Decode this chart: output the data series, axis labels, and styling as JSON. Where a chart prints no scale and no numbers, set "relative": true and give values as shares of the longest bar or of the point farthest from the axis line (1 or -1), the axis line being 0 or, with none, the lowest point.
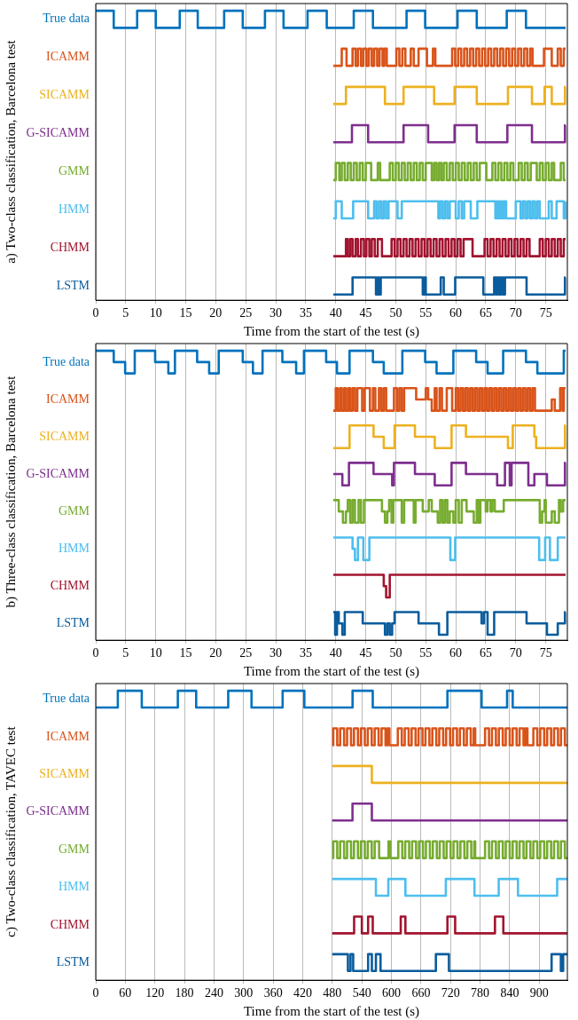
{
  "chart_data": [
    {
      "type": "step",
      "relative": true,
      "ylabel": "a) Two-class classification, Barcelona test",
      "xlabel": "Time from the start of the test (s)",
      "xlim": [
        0,
        78.6
      ],
      "xticks": [
        0,
        5,
        10,
        15,
        20,
        25,
        30,
        35,
        40,
        45,
        50,
        55,
        60,
        65,
        70,
        75
      ],
      "grid": "x",
      "series": [
        {
          "name": "True data",
          "color": "#0072bd",
          "x": [
            0,
            3.0,
            6.9,
            10.0,
            14.0,
            17.0,
            21.4,
            24.5,
            28.2,
            31.3,
            35.3,
            38.5,
            43.0,
            46.2,
            51.8,
            54.9,
            60.3,
            63.5,
            68.5,
            71.7,
            78.3
          ],
          "values": [
            1,
            0.941,
            1,
            0.941,
            1,
            0.941,
            1,
            0.941,
            1,
            0.941,
            1,
            0.941,
            1,
            0.941,
            1,
            0.941,
            1,
            0.941,
            1,
            0.941,
            0.941
          ]
        },
        {
          "name": "ICAMM",
          "color": "#d95319",
          "x": [
            39.6,
            41.0,
            41.8,
            42.8,
            43.3,
            43.7,
            44.2,
            44.6,
            45.1,
            45.5,
            46.0,
            46.4,
            46.9,
            47.3,
            47.8,
            48.1,
            48.5,
            50.1,
            50.6,
            51.1,
            51.6,
            52.5,
            53.0,
            53.8,
            55.2,
            56.2,
            56.6,
            59.4,
            59.9,
            60.4,
            60.9,
            61.4,
            61.9,
            62.4,
            62.9,
            63.4,
            63.9,
            64.4,
            64.9,
            65.4,
            65.9,
            66.4,
            66.9,
            67.4,
            67.9,
            68.4,
            68.9,
            69.4,
            69.9,
            70.4,
            70.9,
            71.4,
            71.9,
            72.4,
            72.8,
            74.7,
            76.0,
            77.0,
            77.5,
            78.0,
            78.3
          ],
          "values": [
            0.81,
            0.869,
            0.81,
            0.869,
            0.81,
            0.869,
            0.81,
            0.869,
            0.81,
            0.869,
            0.81,
            0.869,
            0.81,
            0.869,
            0.81,
            0.869,
            0.81,
            0.869,
            0.81,
            0.869,
            0.81,
            0.869,
            0.81,
            0.869,
            0.81,
            0.869,
            0.81,
            0.869,
            0.81,
            0.869,
            0.81,
            0.869,
            0.81,
            0.869,
            0.81,
            0.869,
            0.81,
            0.869,
            0.81,
            0.869,
            0.81,
            0.869,
            0.81,
            0.869,
            0.81,
            0.869,
            0.81,
            0.869,
            0.81,
            0.869,
            0.81,
            0.869,
            0.81,
            0.869,
            0.81,
            0.869,
            0.81,
            0.869,
            0.81,
            0.869,
            0.869
          ]
        },
        {
          "name": "SICAMM",
          "color": "#edb120",
          "x": [
            39.6,
            41.7,
            48.2,
            51.3,
            56.4,
            59.8,
            63.5,
            68.7,
            72.7,
            74.8,
            76.0,
            78.2,
            78.3
          ],
          "values": [
            0.678,
            0.737,
            0.678,
            0.737,
            0.678,
            0.737,
            0.678,
            0.737,
            0.678,
            0.737,
            0.678,
            0.737,
            0.737
          ]
        },
        {
          "name": "G-SICAMM",
          "color": "#7e2f8e",
          "x": [
            39.6,
            42.7,
            45.4,
            51.3,
            55.4,
            59.8,
            63.5,
            68.6,
            72.7,
            78.2,
            78.3
          ],
          "values": [
            0.546,
            0.605,
            0.546,
            0.605,
            0.546,
            0.605,
            0.546,
            0.605,
            0.546,
            0.605,
            0.605
          ]
        },
        {
          "name": "GMM",
          "color": "#77ac30",
          "x": [
            39.6,
            40.0,
            40.6,
            41.0,
            41.5,
            42.0,
            42.5,
            43.0,
            43.5,
            44.0,
            44.5,
            45.0,
            45.9,
            47.0,
            47.4,
            49.0,
            49.5,
            50.0,
            50.5,
            51.0,
            51.5,
            52.0,
            52.5,
            53.0,
            53.5,
            54.0,
            54.5,
            55.0,
            56.0,
            56.4,
            56.8,
            57.2,
            57.6,
            58.0,
            58.5,
            59.0,
            59.5,
            60.0,
            60.5,
            61.0,
            61.5,
            62.0,
            62.5,
            63.0,
            63.5,
            64.0,
            65.1,
            66.1,
            66.6,
            67.1,
            67.6,
            68.1,
            68.6,
            69.1,
            69.6,
            70.5,
            71.0,
            71.5,
            72.0,
            72.5,
            73.5,
            74.0,
            74.5,
            75.0,
            75.5,
            76.0,
            76.4,
            77.5,
            78.0,
            78.3
          ],
          "values": [
            0.415,
            0.474,
            0.415,
            0.474,
            0.415,
            0.474,
            0.415,
            0.474,
            0.415,
            0.474,
            0.415,
            0.474,
            0.415,
            0.474,
            0.415,
            0.474,
            0.415,
            0.474,
            0.415,
            0.474,
            0.415,
            0.474,
            0.415,
            0.474,
            0.415,
            0.474,
            0.415,
            0.474,
            0.415,
            0.474,
            0.415,
            0.474,
            0.415,
            0.474,
            0.415,
            0.474,
            0.415,
            0.474,
            0.415,
            0.474,
            0.415,
            0.474,
            0.415,
            0.474,
            0.415,
            0.474,
            0.415,
            0.474,
            0.415,
            0.474,
            0.415,
            0.474,
            0.415,
            0.474,
            0.415,
            0.474,
            0.415,
            0.474,
            0.415,
            0.474,
            0.415,
            0.474,
            0.415,
            0.474,
            0.415,
            0.474,
            0.415,
            0.474,
            0.415,
            0.415
          ]
        },
        {
          "name": "HMM",
          "color": "#4dbeee",
          "x": [
            39.6,
            40.0,
            41.0,
            42.9,
            45.4,
            46.4,
            46.8,
            47.2,
            47.6,
            48.0,
            48.4,
            48.8,
            50.3,
            51.0,
            57.1,
            57.4,
            57.8,
            58.2,
            58.6,
            59.0,
            60.0,
            60.5,
            61.0,
            61.4,
            62.5,
            63.6,
            66.6,
            66.9,
            67.2,
            67.5,
            67.8,
            68.1,
            68.4,
            70.0,
            70.8,
            71.2,
            71.6,
            72.0,
            72.4,
            72.8,
            73.2,
            73.6,
            74.0,
            75.5,
            76.0,
            76.8,
            78.0,
            78.3
          ],
          "values": [
            0.283,
            0.342,
            0.283,
            0.342,
            0.283,
            0.342,
            0.283,
            0.342,
            0.283,
            0.342,
            0.283,
            0.342,
            0.283,
            0.342,
            0.283,
            0.342,
            0.283,
            0.342,
            0.283,
            0.342,
            0.283,
            0.342,
            0.283,
            0.342,
            0.283,
            0.342,
            0.283,
            0.342,
            0.283,
            0.342,
            0.283,
            0.342,
            0.283,
            0.342,
            0.283,
            0.342,
            0.283,
            0.342,
            0.283,
            0.342,
            0.283,
            0.342,
            0.283,
            0.342,
            0.283,
            0.342,
            0.283,
            0.342
          ]
        },
        {
          "name": "CHMM",
          "color": "#a2142f",
          "x": [
            39.6,
            41.7,
            42.0,
            42.4,
            42.8,
            43.3,
            43.7,
            44.2,
            44.7,
            45.1,
            45.6,
            46.0,
            46.5,
            47.0,
            47.7,
            49.3,
            49.8,
            50.3,
            50.8,
            51.3,
            51.8,
            52.3,
            52.8,
            53.3,
            53.8,
            54.3,
            54.8,
            55.3,
            55.8,
            56.3,
            56.8,
            57.3,
            57.8,
            58.3,
            58.8,
            59.3,
            59.8,
            60.3,
            60.8,
            61.3,
            62.8,
            64.8,
            65.3,
            65.8,
            66.3,
            66.8,
            67.3,
            67.8,
            68.3,
            68.8,
            69.3,
            69.8,
            70.3,
            70.8,
            71.3,
            71.8,
            72.3,
            74.0,
            74.5,
            75.0,
            75.5,
            76.0,
            76.5,
            77.0,
            77.5,
            78.0,
            78.3
          ],
          "values": [
            0.152,
            0.211,
            0.152,
            0.211,
            0.152,
            0.211,
            0.152,
            0.211,
            0.152,
            0.211,
            0.152,
            0.211,
            0.152,
            0.211,
            0.152,
            0.211,
            0.152,
            0.211,
            0.152,
            0.211,
            0.152,
            0.211,
            0.152,
            0.211,
            0.152,
            0.211,
            0.152,
            0.211,
            0.152,
            0.211,
            0.152,
            0.211,
            0.152,
            0.211,
            0.152,
            0.211,
            0.152,
            0.211,
            0.152,
            0.211,
            0.152,
            0.211,
            0.152,
            0.211,
            0.152,
            0.211,
            0.152,
            0.211,
            0.152,
            0.211,
            0.152,
            0.211,
            0.152,
            0.211,
            0.152,
            0.211,
            0.152,
            0.211,
            0.152,
            0.211,
            0.152,
            0.211,
            0.152,
            0.211,
            0.152,
            0.211,
            0.211
          ]
        },
        {
          "name": "LSTM",
          "color": "#0a5c9c",
          "x": [
            39.6,
            42.8,
            46.7,
            47.0,
            47.2,
            47.5,
            54.5,
            54.8,
            55.0,
            57.5,
            58.0,
            59.9,
            64.6,
            66.4,
            66.7,
            67.0,
            67.3,
            67.6,
            67.9,
            68.2,
            71.8,
            78.2,
            78.3
          ],
          "values": [
            0.02,
            0.079,
            0.02,
            0.079,
            0.02,
            0.079,
            0.02,
            0.079,
            0.02,
            0.079,
            0.02,
            0.079,
            0.02,
            0.079,
            0.02,
            0.079,
            0.02,
            0.079,
            0.02,
            0.079,
            0.02,
            0.079,
            0.079
          ]
        }
      ]
    },
    {
      "type": "step",
      "relative": true,
      "ylabel": "b) Three-class classification, Barcelona test",
      "xlabel": "Time from the start of the test (s)",
      "xlim": [
        0,
        78.6
      ],
      "xticks": [
        0,
        5,
        10,
        15,
        20,
        25,
        30,
        35,
        40,
        45,
        50,
        55,
        60,
        65,
        70,
        75
      ],
      "grid": "x",
      "series": [
        {
          "name": "True data",
          "color": "#0072bd",
          "x": [
            0,
            3.0,
            4.9,
            6.5,
            9.9,
            12.1,
            13.2,
            16.9,
            18.9,
            20.5,
            24.5,
            26.2,
            27.8,
            31.1,
            33.4,
            34.7,
            38.4,
            40.2,
            42.3,
            46.2,
            48.0,
            51.1,
            54.9,
            56.8,
            59.6,
            63.4,
            65.3,
            67.9,
            71.7,
            73.6,
            78.0,
            78.3
          ],
          "values": [
            1,
            0.961,
            0.922,
            1,
            0.961,
            0.922,
            1,
            0.961,
            0.922,
            1,
            0.961,
            0.922,
            1,
            0.961,
            0.922,
            1,
            0.961,
            0.922,
            1,
            0.961,
            0.922,
            1,
            0.961,
            0.922,
            1,
            0.961,
            0.922,
            1,
            0.961,
            0.922,
            1,
            1
          ]
        },
        {
          "name": "ICAMM",
          "color": "#d95319",
          "x": [
            39.6,
            40.0,
            40.3,
            40.7,
            41.0,
            41.4,
            41.7,
            42.1,
            42.4,
            42.8,
            43.2,
            43.6,
            44.4,
            44.8,
            45.7,
            46.2,
            46.6,
            47.2,
            47.6,
            48.0,
            48.4,
            49.7,
            50.2,
            50.6,
            51.0,
            51.4,
            53.4,
            55.0,
            55.4,
            56.0,
            56.5,
            56.8,
            57.3,
            57.7,
            58.5,
            59.4,
            60.0,
            60.4,
            60.8,
            61.2,
            61.6,
            62.0,
            62.4,
            62.8,
            63.2,
            63.6,
            64.0,
            64.4,
            64.8,
            65.2,
            65.6,
            66.0,
            66.4,
            66.8,
            67.2,
            67.6,
            68.0,
            68.4,
            68.8,
            69.2,
            69.6,
            70.0,
            70.4,
            70.8,
            71.2,
            71.6,
            72.0,
            72.4,
            72.8,
            73.2,
            76.0,
            76.5,
            77.4,
            77.8,
            78.0,
            78.3
          ],
          "values": [
            0.793,
            0.871,
            0.793,
            0.871,
            0.793,
            0.871,
            0.793,
            0.871,
            0.793,
            0.871,
            0.793,
            0.871,
            0.793,
            0.871,
            0.793,
            0.871,
            0.793,
            0.871,
            0.793,
            0.871,
            0.793,
            0.871,
            0.793,
            0.871,
            0.793,
            0.871,
            0.832,
            0.871,
            0.832,
            0.793,
            0.871,
            0.793,
            0.871,
            0.793,
            0.871,
            0.793,
            0.871,
            0.793,
            0.871,
            0.793,
            0.871,
            0.793,
            0.871,
            0.793,
            0.871,
            0.793,
            0.871,
            0.793,
            0.871,
            0.793,
            0.871,
            0.793,
            0.871,
            0.793,
            0.871,
            0.793,
            0.871,
            0.793,
            0.871,
            0.793,
            0.871,
            0.793,
            0.871,
            0.793,
            0.871,
            0.793,
            0.871,
            0.793,
            0.871,
            0.793,
            0.832,
            0.793,
            0.871,
            0.793,
            0.871,
            0.871
          ]
        },
        {
          "name": "SICAMM",
          "color": "#edb120",
          "x": [
            39.6,
            42.3,
            46.3,
            48.0,
            49.8,
            53.2,
            56.5,
            59.3,
            61.7,
            68.7,
            69.5,
            73.1,
            73.4,
            78.2,
            78.3
          ],
          "values": [
            0.664,
            0.742,
            0.703,
            0.664,
            0.742,
            0.703,
            0.664,
            0.742,
            0.703,
            0.664,
            0.742,
            0.703,
            0.664,
            0.742,
            0.742
          ]
        },
        {
          "name": "G-SICAMM",
          "color": "#7e2f8e",
          "x": [
            39.6,
            41.1,
            42.2,
            46.3,
            49.4,
            49.7,
            53.2,
            56.5,
            59.3,
            61.7,
            66.9,
            68.2,
            69.0,
            69.3,
            72.1,
            73.1,
            75.2,
            78.2,
            78.3
          ],
          "values": [
            0.574,
            0.535,
            0.613,
            0.574,
            0.535,
            0.613,
            0.574,
            0.535,
            0.613,
            0.574,
            0.535,
            0.613,
            0.535,
            0.613,
            0.535,
            0.574,
            0.535,
            0.613,
            0.613
          ]
        },
        {
          "name": "GMM",
          "color": "#77ac30",
          "x": [
            39.6,
            40.5,
            41.2,
            41.7,
            42.0,
            42.4,
            42.8,
            43.2,
            43.8,
            44.2,
            44.7,
            47.7,
            48.2,
            48.6,
            48.9,
            49.3,
            49.6,
            51.0,
            51.4,
            53.0,
            53.3,
            54.5,
            55.5,
            56.0,
            57.0,
            57.4,
            57.8,
            58.2,
            58.6,
            59.0,
            59.6,
            60.0,
            60.5,
            61.0,
            61.8,
            63.0,
            63.5,
            63.8,
            64.1,
            65.0,
            65.3,
            65.8,
            66.1,
            66.5,
            68.0,
            74.0,
            74.4,
            74.8,
            75.0,
            76.0,
            76.5,
            77.2,
            77.5,
            77.9,
            78.3
          ],
          "values": [
            0.484,
            0.445,
            0.406,
            0.445,
            0.484,
            0.406,
            0.484,
            0.406,
            0.484,
            0.406,
            0.484,
            0.445,
            0.406,
            0.445,
            0.484,
            0.406,
            0.484,
            0.406,
            0.484,
            0.406,
            0.484,
            0.445,
            0.484,
            0.445,
            0.406,
            0.484,
            0.406,
            0.484,
            0.406,
            0.445,
            0.406,
            0.484,
            0.406,
            0.484,
            0.445,
            0.406,
            0.484,
            0.406,
            0.484,
            0.445,
            0.484,
            0.445,
            0.484,
            0.445,
            0.484,
            0.406,
            0.445,
            0.484,
            0.406,
            0.445,
            0.406,
            0.484,
            0.445,
            0.484,
            0.484
          ]
        },
        {
          "name": "HMM",
          "color": "#4dbeee",
          "x": [
            39.6,
            42.8,
            43.2,
            43.7,
            44.6,
            45.6,
            59.1,
            59.9,
            73.9,
            74.9,
            75.7,
            77.0,
            78.3
          ],
          "values": [
            0.355,
            0.316,
            0.277,
            0.355,
            0.277,
            0.355,
            0.277,
            0.355,
            0.277,
            0.355,
            0.277,
            0.355,
            0.355
          ]
        },
        {
          "name": "CHMM",
          "color": "#a2142f",
          "x": [
            39.6,
            48.0,
            48.4,
            49.0,
            78.3
          ],
          "values": [
            0.226,
            0.187,
            0.148,
            0.226,
            0.226
          ]
        },
        {
          "name": "LSTM",
          "color": "#0a5c9c",
          "x": [
            39.6,
            39.9,
            40.2,
            40.5,
            41.1,
            41.5,
            44.5,
            48.2,
            48.6,
            49.0,
            49.4,
            49.8,
            53.8,
            57.2,
            58.6,
            64.3,
            64.7,
            65.3,
            66.4,
            71.8,
            75.2,
            77.0,
            78.2,
            78.3
          ],
          "values": [
            0.097,
            0.019,
            0.097,
            0.058,
            0.019,
            0.097,
            0.058,
            0.019,
            0.058,
            0.019,
            0.058,
            0.097,
            0.058,
            0.019,
            0.097,
            0.058,
            0.097,
            0.019,
            0.097,
            0.058,
            0.019,
            0.058,
            0.097,
            0.097
          ]
        }
      ]
    },
    {
      "type": "step",
      "relative": true,
      "ylabel": "c) Two-class classification, TAVEC test",
      "xlabel": "Time from the start of the test (s)",
      "xlim": [
        0,
        957
      ],
      "xticks": [
        0,
        60,
        120,
        180,
        240,
        300,
        360,
        420,
        480,
        540,
        600,
        660,
        720,
        780,
        840,
        900
      ],
      "grid": "x",
      "series": [
        {
          "name": "True data",
          "color": "#0072bd",
          "x": [
            0,
            44.8,
            93.4,
            166.6,
            203.8,
            268.8,
            316.1,
            379.2,
            423.3,
            521.1,
            562.1,
            713.6,
            783.0,
            834.7,
            846.1,
            957
          ],
          "values": [
            0.942,
            1,
            0.942,
            1,
            0.942,
            1,
            0.942,
            1,
            0.942,
            1,
            0.942,
            1,
            0.942,
            1,
            0.942,
            0.942
          ]
        },
        {
          "name": "ICAMM",
          "color": "#d95319",
          "x": [
            480,
            482,
            490,
            496,
            504,
            510,
            518,
            524,
            532,
            538,
            546,
            552,
            560,
            566,
            574,
            580,
            588,
            592,
            596,
            613,
            621,
            627,
            635,
            641,
            649,
            655,
            663,
            669,
            677,
            683,
            691,
            697,
            705,
            711,
            719,
            725,
            733,
            739,
            747,
            753,
            761,
            767,
            770,
            790,
            798,
            804,
            812,
            818,
            826,
            832,
            840,
            846,
            854,
            860,
            868,
            872,
            876,
            888,
            896,
            902,
            910,
            916,
            924,
            930,
            938,
            944,
            952,
            957
          ],
          "values": [
            0.812,
            0.87,
            0.812,
            0.87,
            0.812,
            0.87,
            0.812,
            0.87,
            0.812,
            0.87,
            0.812,
            0.87,
            0.812,
            0.87,
            0.812,
            0.87,
            0.812,
            0.87,
            0.812,
            0.87,
            0.812,
            0.87,
            0.812,
            0.87,
            0.812,
            0.87,
            0.812,
            0.87,
            0.812,
            0.87,
            0.812,
            0.87,
            0.812,
            0.87,
            0.812,
            0.87,
            0.812,
            0.87,
            0.812,
            0.87,
            0.812,
            0.87,
            0.812,
            0.87,
            0.812,
            0.87,
            0.812,
            0.87,
            0.812,
            0.87,
            0.812,
            0.87,
            0.812,
            0.87,
            0.812,
            0.87,
            0.812,
            0.87,
            0.812,
            0.87,
            0.812,
            0.87,
            0.812,
            0.87,
            0.812,
            0.87,
            0.812,
            0.812
          ]
        },
        {
          "name": "SICAMM",
          "color": "#edb120",
          "x": [
            480,
            560.3,
            957
          ],
          "values": [
            0.74,
            0.682,
            0.682
          ]
        },
        {
          "name": "G-SICAMM",
          "color": "#7e2f8e",
          "x": [
            480,
            521,
            560.3,
            957
          ],
          "values": [
            0.552,
            0.61,
            0.552,
            0.552
          ]
        },
        {
          "name": "GMM",
          "color": "#77ac30",
          "x": [
            480,
            482,
            490,
            496,
            504,
            510,
            518,
            524,
            532,
            538,
            546,
            552,
            560,
            566,
            575,
            594,
            598,
            614,
            622,
            628,
            636,
            642,
            650,
            656,
            664,
            670,
            678,
            684,
            692,
            698,
            706,
            712,
            720,
            726,
            734,
            740,
            748,
            754,
            762,
            768,
            770,
            790,
            798,
            804,
            812,
            818,
            826,
            832,
            840,
            846,
            854,
            860,
            868,
            874,
            882,
            888,
            896,
            902,
            910,
            916,
            924,
            930,
            938,
            944,
            952,
            957
          ],
          "values": [
            0.422,
            0.48,
            0.422,
            0.48,
            0.422,
            0.48,
            0.422,
            0.48,
            0.422,
            0.48,
            0.422,
            0.48,
            0.422,
            0.48,
            0.422,
            0.48,
            0.422,
            0.48,
            0.422,
            0.48,
            0.422,
            0.48,
            0.422,
            0.48,
            0.422,
            0.48,
            0.422,
            0.48,
            0.422,
            0.48,
            0.422,
            0.48,
            0.422,
            0.48,
            0.422,
            0.48,
            0.422,
            0.48,
            0.422,
            0.48,
            0.422,
            0.48,
            0.422,
            0.48,
            0.422,
            0.48,
            0.422,
            0.48,
            0.422,
            0.48,
            0.422,
            0.48,
            0.422,
            0.48,
            0.422,
            0.48,
            0.422,
            0.48,
            0.422,
            0.48,
            0.422,
            0.48,
            0.422,
            0.48,
            0.422,
            0.422
          ]
        },
        {
          "name": "HMM",
          "color": "#4dbeee",
          "x": [
            480,
            568.5,
            593.7,
            628.4,
            710.4,
            768.5,
            817.7,
            856.8,
            936.3,
            957
          ],
          "values": [
            0.35,
            0.292,
            0.35,
            0.292,
            0.35,
            0.292,
            0.35,
            0.292,
            0.35,
            0.35
          ]
        },
        {
          "name": "CHMM",
          "color": "#a2142f",
          "x": [
            480,
            524.3,
            540,
            552.7,
            562.1,
            618.9,
            628.4,
            713.6,
            729.3,
            810.1,
            827.1,
            957
          ],
          "values": [
            0.162,
            0.22,
            0.162,
            0.22,
            0.162,
            0.22,
            0.162,
            0.22,
            0.162,
            0.22,
            0.162,
            0.162
          ]
        },
        {
          "name": "LSTM",
          "color": "#0a5c9c",
          "x": [
            480,
            511.7,
            517,
            522.4,
            552.7,
            560.3,
            568.5,
            577.9,
            690.2,
            716.7,
            925,
            943.8,
            948.5,
            957
          ],
          "values": [
            0.09,
            0.032,
            0.09,
            0.032,
            0.09,
            0.032,
            0.09,
            0.032,
            0.09,
            0.032,
            0.09,
            0.032,
            0.09,
            0.09
          ]
        }
      ]
    }
  ]
}
